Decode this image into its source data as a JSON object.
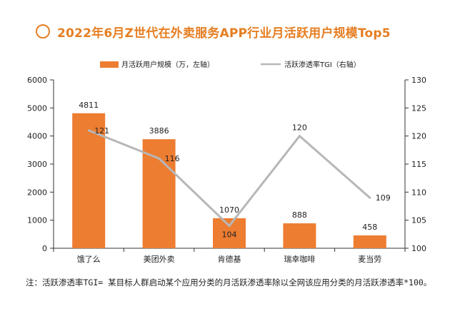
{
  "title": "2022年6月Z世代在外卖服务APP行业月活跃用户规模Top5",
  "note": "注：活跃渗透率TGI= 某目标人群启动某个应用分类的月活跃渗透率除以全网该应用分类的月活跃渗透率*100。",
  "colors": {
    "accent": "#e67e22",
    "bar": "#ed7d31",
    "line": "#b7b7b7"
  },
  "chart_data": {
    "type": "bar",
    "categories": [
      "饿了么",
      "美团外卖",
      "肯德基",
      "瑞幸咖啡",
      "麦当劳"
    ],
    "series": [
      {
        "name": "月活跃用户规模（万，左轴）",
        "type": "bar",
        "axis": "left",
        "values": [
          4811,
          3886,
          1070,
          888,
          458
        ]
      },
      {
        "name": "活跃渗透率TGI（右轴）",
        "type": "line",
        "axis": "right",
        "values": [
          121,
          116,
          104,
          120,
          109
        ]
      }
    ],
    "y_left": {
      "min": 0,
      "max": 6000,
      "ticks": [
        0,
        1000,
        2000,
        3000,
        4000,
        5000,
        6000
      ]
    },
    "y_right": {
      "min": 100,
      "max": 130,
      "ticks": [
        100,
        105,
        110,
        115,
        120,
        125,
        130
      ]
    },
    "legend_position": "top",
    "grid": false
  }
}
